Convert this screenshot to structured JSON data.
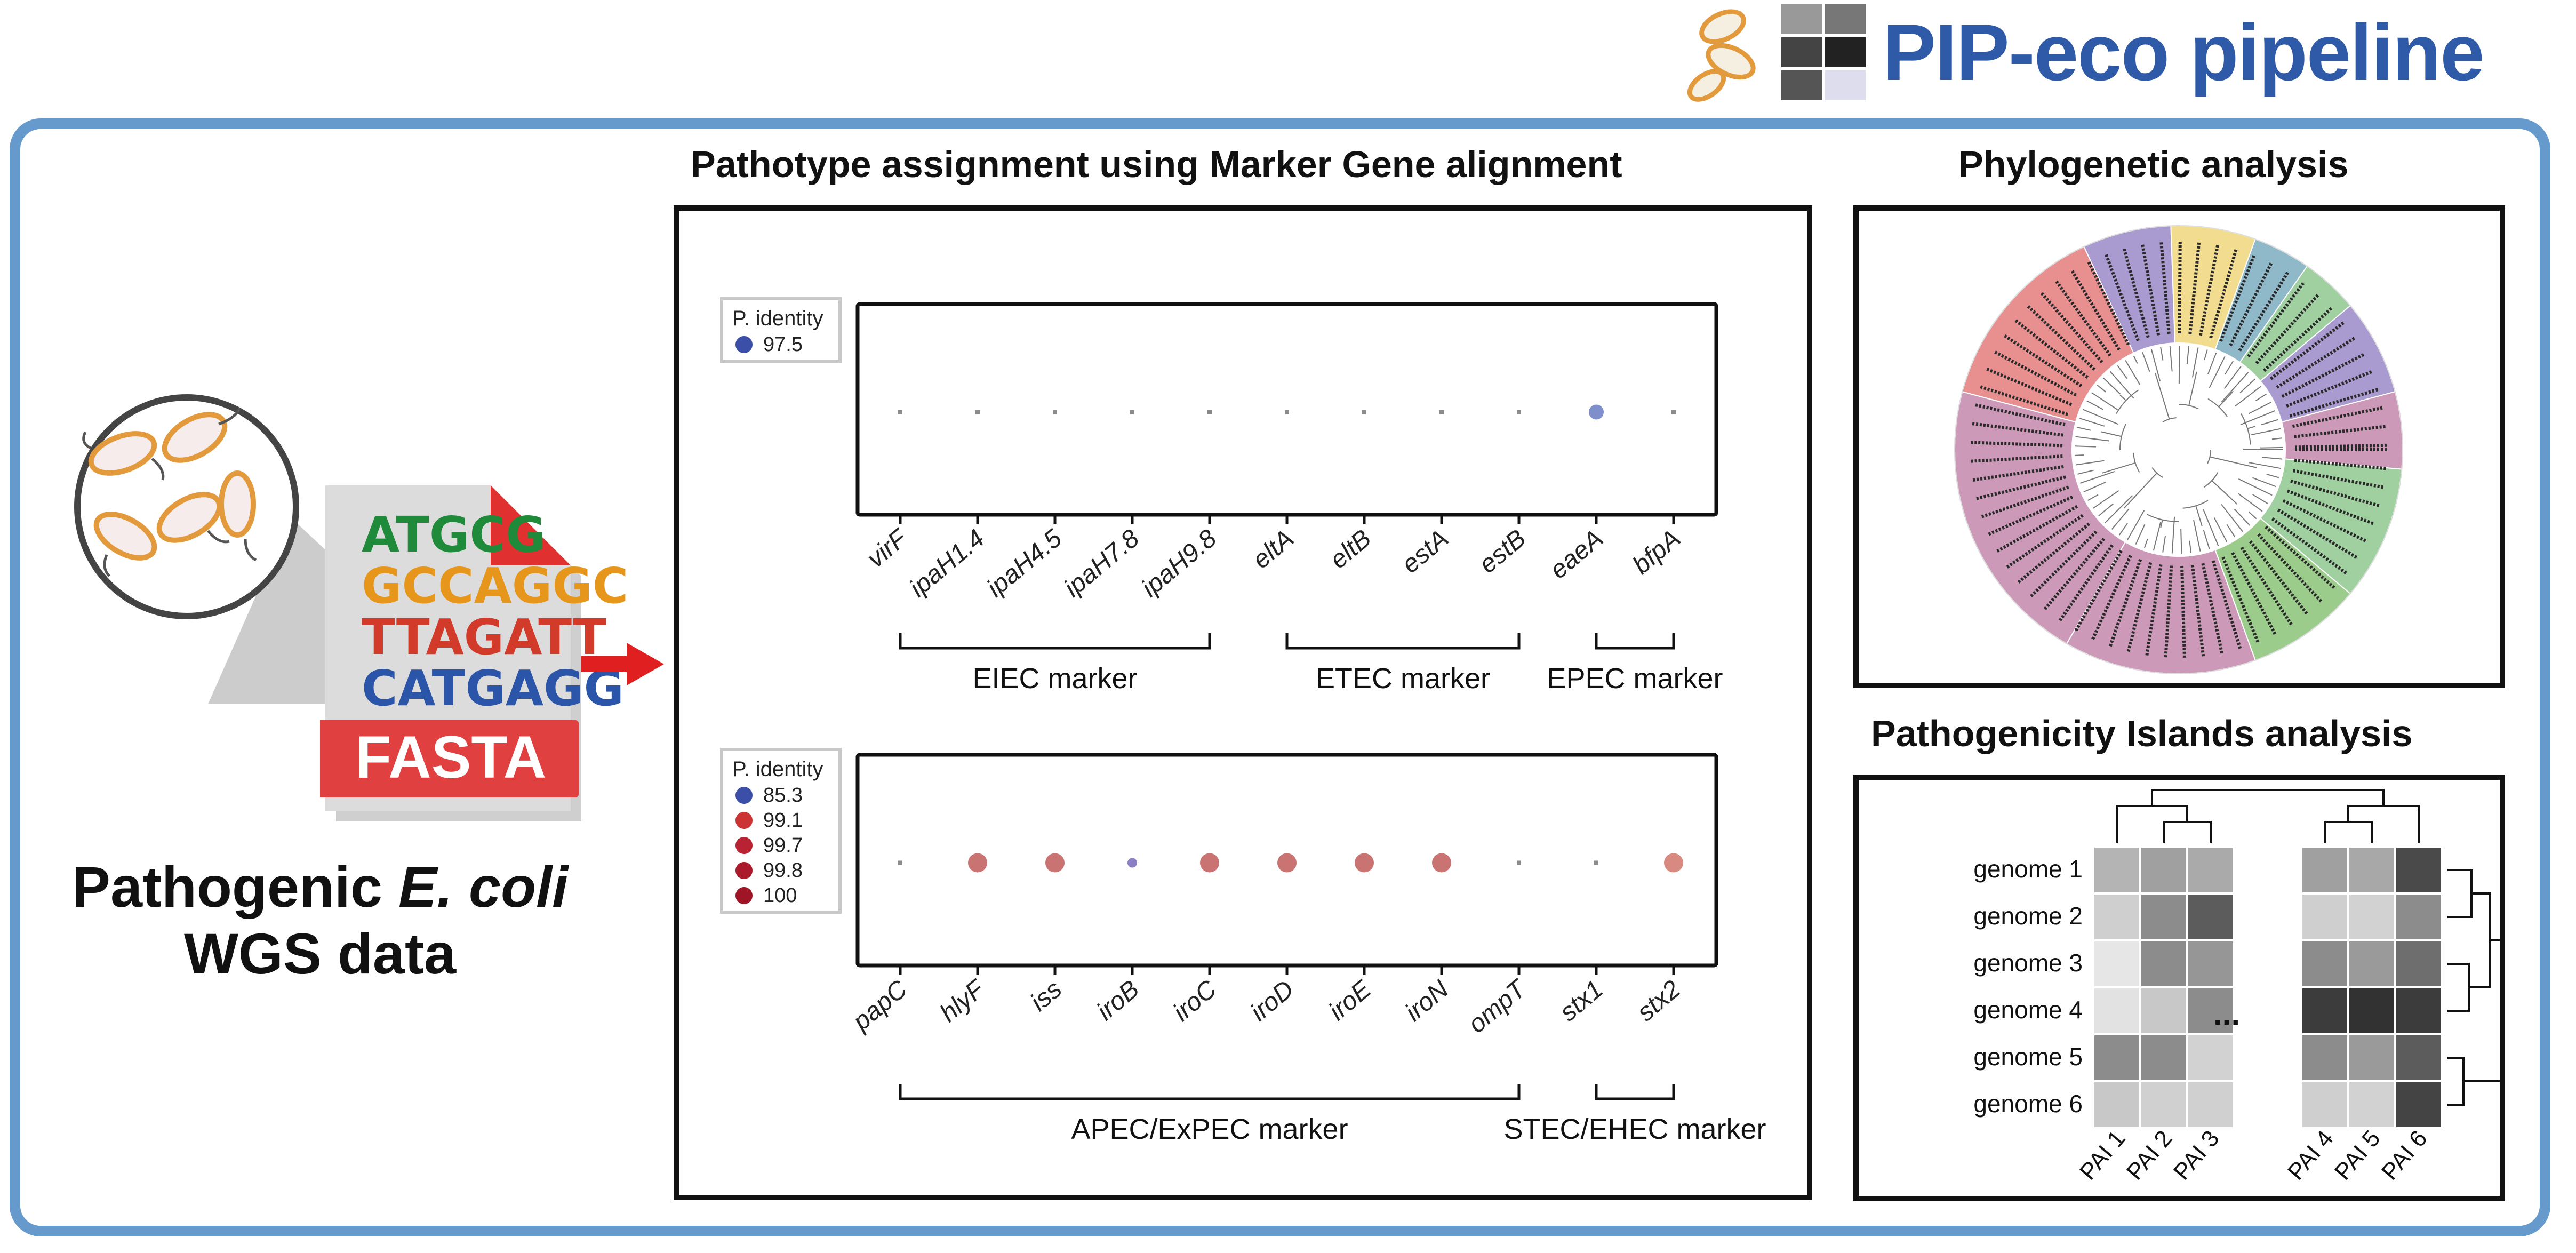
{
  "header": {
    "title": "PIP-eco pipeline"
  },
  "input": {
    "dna_lines": [
      "ATGCG",
      "GCCAGGC",
      "TTAGATT",
      "CATGAGG"
    ],
    "file_label": "FASTA",
    "caption_line1_prefix": "Pathogenic ",
    "caption_line1_italic": "E. coli",
    "caption_line2": "WGS data"
  },
  "marker_panel": {
    "title": "Pathotype assignment using Marker Gene alignment",
    "top": {
      "legend_title": "P. identity",
      "legend": [
        {
          "label": "97.5",
          "color": "#3b4fa8"
        }
      ],
      "genes": [
        "virF",
        "ipaH1.4",
        "ipaH4.5",
        "ipaH7.8",
        "ipaH9.8",
        "eltA",
        "eltB",
        "estA",
        "estB",
        "eaeA",
        "bfpA"
      ],
      "hits": [
        {
          "gene": "eaeA",
          "identity": 97.5,
          "color": "#7f8fcc"
        }
      ],
      "groups": [
        {
          "label": "EIEC marker",
          "from": 0,
          "to": 4
        },
        {
          "label": "ETEC marker",
          "from": 5,
          "to": 8
        },
        {
          "label": "EPEC marker",
          "from": 9,
          "to": 10
        }
      ]
    },
    "bottom": {
      "legend_title": "P. identity",
      "legend": [
        {
          "label": "85.3",
          "color": "#3b4fa8"
        },
        {
          "label": "99.1",
          "color": "#cc3333"
        },
        {
          "label": "99.7",
          "color": "#b82233"
        },
        {
          "label": "99.8",
          "color": "#aa1a2a"
        },
        {
          "label": "100",
          "color": "#a01525"
        }
      ],
      "genes": [
        "papC",
        "hlyF",
        "iss",
        "iroB",
        "iroC",
        "iroD",
        "iroE",
        "iroN",
        "ompT",
        "stx1",
        "stx2"
      ],
      "hits": [
        {
          "gene": "hlyF",
          "identity": 99.7,
          "color": "#c97373"
        },
        {
          "gene": "iss",
          "identity": 99.7,
          "color": "#c97373"
        },
        {
          "gene": "iroB",
          "identity": 85.3,
          "color": "#8a7ec4"
        },
        {
          "gene": "iroC",
          "identity": 99.7,
          "color": "#c97373"
        },
        {
          "gene": "iroD",
          "identity": 99.7,
          "color": "#c97373"
        },
        {
          "gene": "iroE",
          "identity": 99.7,
          "color": "#c97373"
        },
        {
          "gene": "iroN",
          "identity": 99.7,
          "color": "#c97373"
        },
        {
          "gene": "stx2",
          "identity": 99.1,
          "color": "#d98a80"
        }
      ],
      "groups": [
        {
          "label": "APEC/ExPEC marker",
          "from": 0,
          "to": 8
        },
        {
          "label": "STEC/EHEC marker",
          "from": 9,
          "to": 10
        }
      ]
    }
  },
  "phylo_panel": {
    "title": "Phylogenetic analysis",
    "clade_colors": [
      "#cc9ab8",
      "#9ccc8c",
      "#a99ad0",
      "#e89090",
      "#f2dc90",
      "#8fb8c8",
      "#a0cfa0",
      "#bdbdbd"
    ]
  },
  "pai_panel": {
    "title": "Pathogenicity Islands analysis",
    "genomes": [
      "genome 1",
      "genome 2",
      "genome 3",
      "genome 4",
      "genome 5",
      "genome 6"
    ],
    "pai_left": [
      "PAI 1",
      "PAI 2",
      "PAI 3"
    ],
    "pai_right": [
      "PAI 4",
      "PAI 5",
      "PAI 6"
    ],
    "ellipsis": "...",
    "left_matrix": [
      [
        "#b4b4b4",
        "#a0a0a0",
        "#aaaaaa"
      ],
      [
        "#cfcfcf",
        "#8c8c8c",
        "#5c5c5c"
      ],
      [
        "#e6e6e6",
        "#8c8c8c",
        "#969696"
      ],
      [
        "#e2e2e2",
        "#c8c8c8",
        "#8c8c8c"
      ],
      [
        "#8c8c8c",
        "#8c8c8c",
        "#d2d2d2"
      ],
      [
        "#c8c8c8",
        "#d0d0d0",
        "#d0d0d0"
      ]
    ],
    "right_matrix": [
      [
        "#a0a0a0",
        "#a8a8a8",
        "#4a4a4a"
      ],
      [
        "#cfcfcf",
        "#d2d2d2",
        "#8c8c8c"
      ],
      [
        "#8c8c8c",
        "#9a9a9a",
        "#6e6e6e"
      ],
      [
        "#3c3c3c",
        "#323232",
        "#3c3c3c"
      ],
      [
        "#8c8c8c",
        "#9a9a9a",
        "#5c5c5c"
      ],
      [
        "#cfcfcf",
        "#d2d2d2",
        "#444444"
      ]
    ]
  }
}
